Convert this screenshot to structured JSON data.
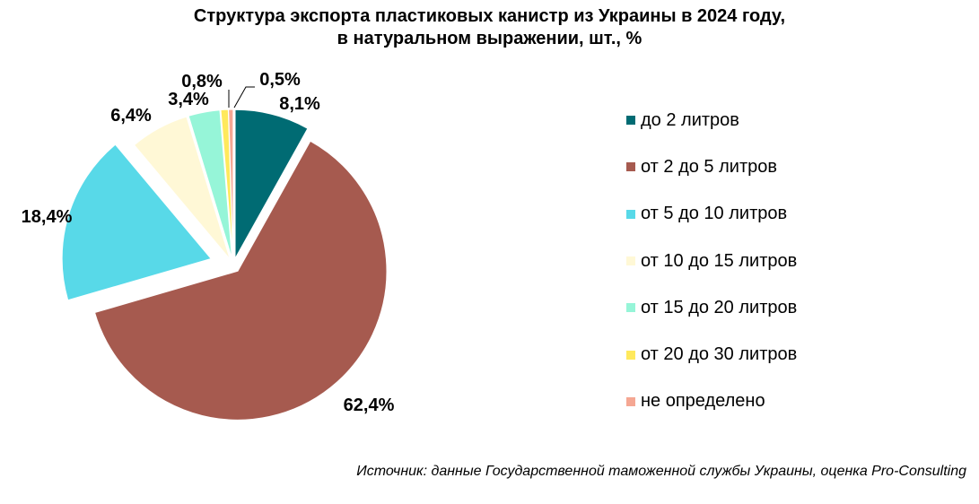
{
  "chart_data": {
    "type": "pie",
    "title_line1": "Структура экспорта пластиковых канистр из Украины в 2024 году,",
    "title_line2": "в натуральном выражении, шт., %",
    "legend_position": "right",
    "slices": [
      {
        "name": "до 2 литров",
        "value": 8.1,
        "label": "8,1%",
        "color": "#006B73"
      },
      {
        "name": "от 2 до 5 литров",
        "value": 62.4,
        "label": "62,4%",
        "color": "#A65A4F"
      },
      {
        "name": "от 5 до 10 литров",
        "value": 18.4,
        "label": "18,4%",
        "color": "#58D9E8"
      },
      {
        "name": "от 10 до 15 литров",
        "value": 6.4,
        "label": "6,4%",
        "color": "#FFF8D6"
      },
      {
        "name": "от 15 до 20 литров",
        "value": 3.4,
        "label": "3,4%",
        "color": "#96F5D8"
      },
      {
        "name": "от 20 до 30 литров",
        "value": 0.8,
        "label": "0,8%",
        "color": "#FFE95C"
      },
      {
        "name": "не определено",
        "value": 0.5,
        "label": "0,5%",
        "color": "#F5A793"
      }
    ]
  },
  "source": "Источник: данные Государственной таможенной службы Украины, оценка Pro-Consulting"
}
